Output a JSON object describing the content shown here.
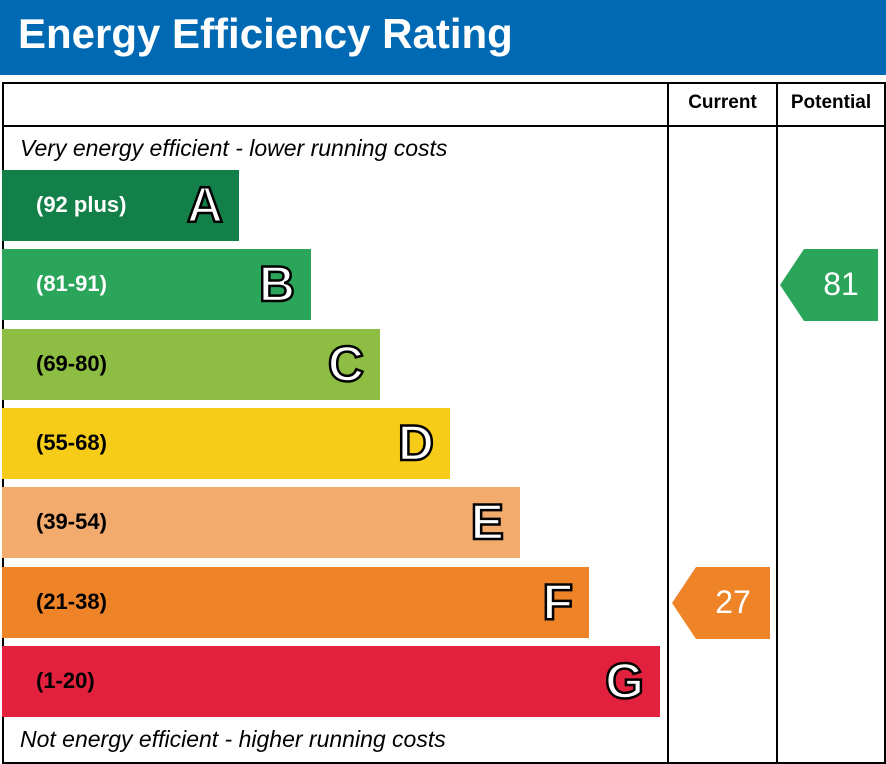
{
  "header": {
    "title": "Energy Efficiency Rating"
  },
  "columns": {
    "current": "Current",
    "potential": "Potential"
  },
  "notes": {
    "top": "Very energy efficient - lower running costs",
    "bottom": "Not energy efficient - higher running costs"
  },
  "chart_data": {
    "type": "bar",
    "title": "Energy Efficiency Rating",
    "bands": [
      {
        "letter": "A",
        "range": "(92 plus)",
        "min": 92,
        "max": 100,
        "color": "#138049",
        "text_color": "#ffffff"
      },
      {
        "letter": "B",
        "range": "(81-91)",
        "min": 81,
        "max": 91,
        "color": "#2ba55a",
        "text_color": "#ffffff"
      },
      {
        "letter": "C",
        "range": "(69-80)",
        "min": 69,
        "max": 80,
        "color": "#8dbd43",
        "text_color": "#000000"
      },
      {
        "letter": "D",
        "range": "(55-68)",
        "min": 55,
        "max": 68,
        "color": "#f6cc18",
        "text_color": "#000000"
      },
      {
        "letter": "E",
        "range": "(39-54)",
        "min": 39,
        "max": 54,
        "color": "#f2aa6d",
        "text_color": "#000000"
      },
      {
        "letter": "F",
        "range": "(21-38)",
        "min": 21,
        "max": 38,
        "color": "#ee8328",
        "text_color": "#000000"
      },
      {
        "letter": "G",
        "range": "(1-20)",
        "min": 1,
        "max": 20,
        "color": "#e2213e",
        "text_color": "#000000"
      }
    ],
    "current": {
      "value": 27,
      "band": "F",
      "color": "#ee8328"
    },
    "potential": {
      "value": 81,
      "band": "B",
      "color": "#2ba55a"
    }
  }
}
